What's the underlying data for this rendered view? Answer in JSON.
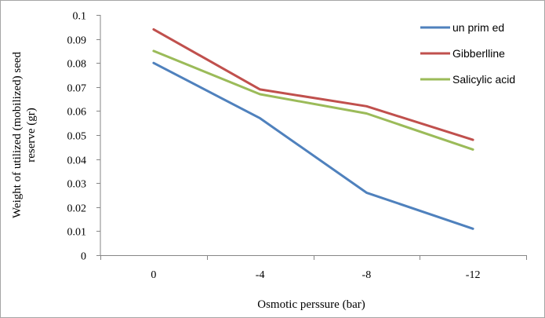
{
  "chart_data": {
    "type": "line",
    "title": "",
    "xlabel": "Osmotic perssure (bar)",
    "ylabel_line1": "Weight of utilized (mobilized)  seed",
    "ylabel_line2": "reserve (gr)",
    "categories": [
      "0",
      "-4",
      "-8",
      "-12"
    ],
    "ylim": [
      0,
      0.1
    ],
    "yticks": [
      0,
      0.01,
      0.02,
      0.03,
      0.04,
      0.05,
      0.06,
      0.07,
      0.08,
      0.09,
      0.1
    ],
    "ytick_labels": [
      "0",
      "0.01",
      "0.02",
      "0.03",
      "0.04",
      "0.05",
      "0.06",
      "0.07",
      "0.08",
      "0.09",
      "0.1"
    ],
    "grid": false,
    "legend_position": "top-right",
    "series": [
      {
        "name": "un prim ed",
        "color": "#4f81bd",
        "values": [
          0.08,
          0.057,
          0.026,
          0.011
        ]
      },
      {
        "name": "Gibberlline",
        "color": "#c0504d",
        "values": [
          0.094,
          0.069,
          0.062,
          0.048
        ]
      },
      {
        "name": "Salicylic acid",
        "color": "#9bbb59",
        "values": [
          0.085,
          0.067,
          0.059,
          0.044
        ]
      }
    ]
  }
}
